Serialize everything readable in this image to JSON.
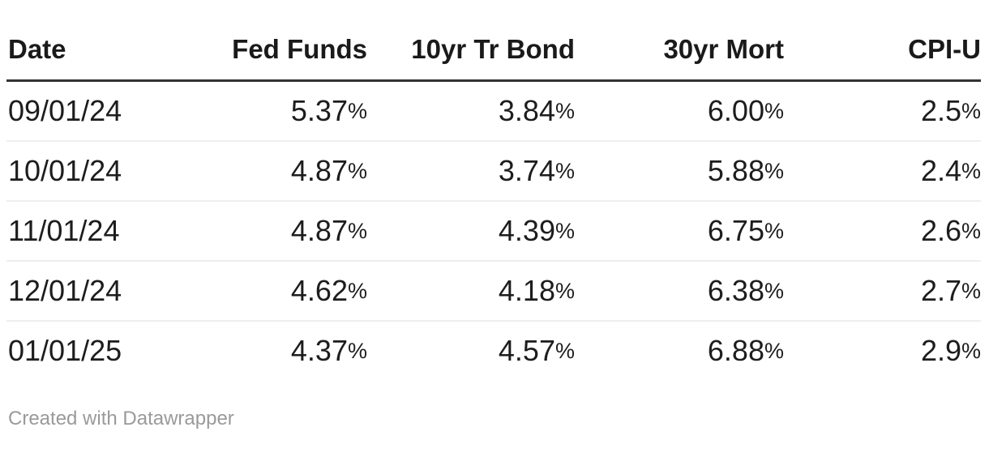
{
  "colors": {
    "background": "#ffffff",
    "header_text": "#1a1a1a",
    "body_text": "#1d1d1d",
    "header_rule": "#333333",
    "row_rule": "#eeeeee",
    "footer_text": "#9a9a9a"
  },
  "table": {
    "columns": [
      {
        "id": "date",
        "label": "Date",
        "align": "left"
      },
      {
        "id": "fed-funds",
        "label": "Fed Funds",
        "align": "right"
      },
      {
        "id": "10yr-tr-bond",
        "label": "10yr Tr Bond",
        "align": "right"
      },
      {
        "id": "30yr-mort",
        "label": "30yr Mort",
        "align": "right"
      },
      {
        "id": "cpi-u",
        "label": "CPI-U",
        "align": "right"
      }
    ],
    "rows": [
      [
        "09/01/24",
        "5.37%",
        "3.84%",
        "6.00%",
        "2.5%"
      ],
      [
        "10/01/24",
        "4.87%",
        "3.74%",
        "5.88%",
        "2.4%"
      ],
      [
        "11/01/24",
        "4.87%",
        "4.39%",
        "6.75%",
        "2.6%"
      ],
      [
        "12/01/24",
        "4.62%",
        "4.18%",
        "6.38%",
        "2.7%"
      ],
      [
        "01/01/25",
        "4.37%",
        "4.57%",
        "6.88%",
        "2.9%"
      ]
    ]
  },
  "footer": {
    "attribution": "Created with Datawrapper"
  },
  "chart_data": {
    "type": "table",
    "title": "",
    "columns": [
      "Date",
      "Fed Funds",
      "10yr Tr Bond",
      "30yr Mort",
      "CPI-U"
    ],
    "units": "%",
    "rows": [
      {
        "date": "09/01/24",
        "fed_funds": 5.37,
        "tr_bond_10yr": 3.84,
        "mort_30yr": 6.0,
        "cpi_u": 2.5
      },
      {
        "date": "10/01/24",
        "fed_funds": 4.87,
        "tr_bond_10yr": 3.74,
        "mort_30yr": 5.88,
        "cpi_u": 2.4
      },
      {
        "date": "11/01/24",
        "fed_funds": 4.87,
        "tr_bond_10yr": 4.39,
        "mort_30yr": 6.75,
        "cpi_u": 2.6
      },
      {
        "date": "12/01/24",
        "fed_funds": 4.62,
        "tr_bond_10yr": 4.18,
        "mort_30yr": 6.38,
        "cpi_u": 2.7
      },
      {
        "date": "01/01/25",
        "fed_funds": 4.37,
        "tr_bond_10yr": 4.57,
        "mort_30yr": 6.88,
        "cpi_u": 2.9
      }
    ],
    "attribution": "Created with Datawrapper"
  }
}
